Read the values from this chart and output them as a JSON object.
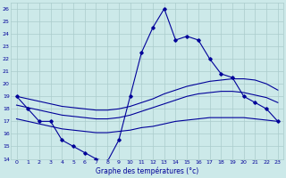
{
  "title": "Graphe des températures (°c)",
  "bg_color": "#cce9e9",
  "grid_color": "#aacccc",
  "line_color": "#000099",
  "xlim": [
    -0.5,
    23.5
  ],
  "ylim": [
    14,
    26.5
  ],
  "yticks": [
    14,
    15,
    16,
    17,
    18,
    19,
    20,
    21,
    22,
    23,
    24,
    25,
    26
  ],
  "xticks": [
    0,
    1,
    2,
    3,
    4,
    5,
    6,
    7,
    8,
    9,
    10,
    11,
    12,
    13,
    14,
    15,
    16,
    17,
    18,
    19,
    20,
    21,
    22,
    23
  ],
  "series_main": {
    "x": [
      0,
      1,
      2,
      3,
      4,
      5,
      6,
      7,
      8,
      9,
      10,
      11,
      12,
      13,
      14,
      15,
      16,
      17,
      18,
      19,
      20,
      21,
      22,
      23
    ],
    "y": [
      19,
      18,
      17,
      17,
      15.5,
      15,
      14.5,
      14,
      13.8,
      15.5,
      19,
      22.5,
      24.5,
      26,
      23.5,
      23.8,
      23.5,
      22,
      20.8,
      20.5,
      19,
      18.5,
      18,
      17
    ]
  },
  "series_smooth": [
    {
      "x": [
        0,
        1,
        2,
        3,
        4,
        5,
        6,
        7,
        8,
        9,
        10,
        11,
        12,
        13,
        14,
        15,
        16,
        17,
        18,
        19,
        20,
        21,
        22,
        23
      ],
      "y": [
        19,
        18.8,
        18.6,
        18.4,
        18.2,
        18.1,
        18.0,
        17.9,
        17.9,
        18.0,
        18.2,
        18.5,
        18.8,
        19.2,
        19.5,
        19.8,
        20.0,
        20.2,
        20.3,
        20.4,
        20.4,
        20.3,
        20.0,
        19.5
      ]
    },
    {
      "x": [
        0,
        1,
        2,
        3,
        4,
        5,
        6,
        7,
        8,
        9,
        10,
        11,
        12,
        13,
        14,
        15,
        16,
        17,
        18,
        19,
        20,
        21,
        22,
        23
      ],
      "y": [
        18.3,
        18.1,
        17.9,
        17.7,
        17.5,
        17.4,
        17.3,
        17.2,
        17.2,
        17.3,
        17.5,
        17.8,
        18.1,
        18.4,
        18.7,
        19.0,
        19.2,
        19.3,
        19.4,
        19.4,
        19.3,
        19.1,
        18.9,
        18.5
      ]
    },
    {
      "x": [
        0,
        1,
        2,
        3,
        4,
        5,
        6,
        7,
        8,
        9,
        10,
        11,
        12,
        13,
        14,
        15,
        16,
        17,
        18,
        19,
        20,
        21,
        22,
        23
      ],
      "y": [
        17.2,
        17.0,
        16.8,
        16.6,
        16.4,
        16.3,
        16.2,
        16.1,
        16.1,
        16.2,
        16.3,
        16.5,
        16.6,
        16.8,
        17.0,
        17.1,
        17.2,
        17.3,
        17.3,
        17.3,
        17.3,
        17.2,
        17.1,
        17.0
      ]
    }
  ]
}
